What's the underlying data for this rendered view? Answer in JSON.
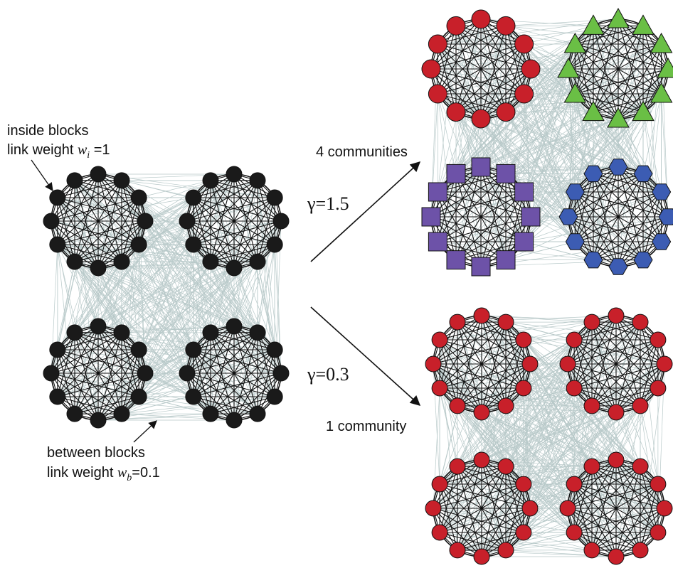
{
  "labels": {
    "inside_line1": "inside blocks",
    "inside_line2_prefix": "link weight ",
    "inside_var": "w",
    "inside_sub": "i",
    "inside_value": " =1",
    "between_line1": "between blocks",
    "between_line2_prefix": "link weight ",
    "between_var": "w",
    "between_sub": "b",
    "between_value": "=0.1",
    "gamma_high": "γ=1.5",
    "gamma_low": "γ=0.3",
    "result_high": "4 communities",
    "result_low": "1 community"
  },
  "colors": {
    "intra_edge": "#111111",
    "inter_edge": "#b8c9c9",
    "node_input": "#1a1a1a",
    "community_red": "#c8202a",
    "community_green": "#6abf45",
    "community_purple": "#6d52a8",
    "community_blue": "#3c5cb3"
  },
  "network": {
    "blocks": 4,
    "nodes_per_block": 12,
    "communities_high_gamma": [
      {
        "block": 1,
        "shape": "circle",
        "color": "community_red"
      },
      {
        "block": 2,
        "shape": "triangle",
        "color": "community_green"
      },
      {
        "block": 3,
        "shape": "square",
        "color": "community_purple"
      },
      {
        "block": 4,
        "shape": "hexagon",
        "color": "community_blue"
      }
    ],
    "communities_low_gamma": [
      {
        "block": 1,
        "shape": "circle",
        "color": "community_red"
      },
      {
        "block": 2,
        "shape": "circle",
        "color": "community_red"
      },
      {
        "block": 3,
        "shape": "circle",
        "color": "community_red"
      },
      {
        "block": 4,
        "shape": "circle",
        "color": "community_red"
      }
    ]
  }
}
